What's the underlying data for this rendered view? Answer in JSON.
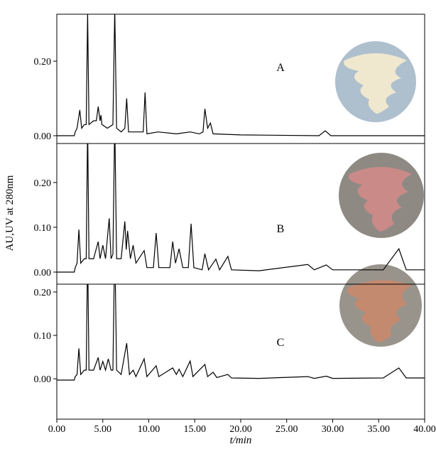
{
  "chart_data": [
    {
      "type": "line",
      "label": "A",
      "color": "#000000",
      "xlim": [
        0,
        40
      ],
      "ylim": [
        -0.021,
        0.326
      ],
      "yticks": [
        {
          "value": 0,
          "label": "0.00"
        },
        {
          "value": 0.2,
          "label": "0.20"
        }
      ],
      "x": [
        0,
        1.9,
        2.0,
        2.2,
        2.5,
        2.7,
        3.0,
        3.2,
        3.35,
        3.5,
        4.0,
        4.3,
        4.5,
        4.7,
        4.8,
        4.9,
        5.5,
        6.1,
        6.3,
        6.5,
        7.0,
        7.4,
        7.6,
        7.8,
        8.5,
        9.4,
        9.6,
        9.8,
        11,
        13,
        14.5,
        15.5,
        15.9,
        16.1,
        16.4,
        16.7,
        17.0,
        20,
        28.5,
        29.2,
        29.8,
        40
      ],
      "values": [
        0,
        0,
        0.01,
        0.02,
        0.069,
        0.02,
        0.03,
        0.03,
        0.33,
        0.03,
        0.04,
        0.04,
        0.078,
        0.04,
        0.055,
        0.03,
        0.02,
        0.03,
        0.34,
        0.02,
        0.01,
        0.02,
        0.1,
        0.01,
        0.01,
        0.01,
        0.116,
        0.005,
        0.01,
        0.005,
        0.01,
        0.005,
        0.01,
        0.072,
        0.02,
        0.034,
        0.005,
        0.002,
        0,
        0.013,
        0,
        0
      ]
    },
    {
      "type": "line",
      "label": "B",
      "color": "#000000",
      "ylabel": "AU,UV at 280nm",
      "xlim": [
        0,
        40
      ],
      "ylim": [
        -0.027,
        0.287
      ],
      "yticks": [
        {
          "value": 0,
          "label": "0.00"
        },
        {
          "value": 0.1,
          "label": "0.10"
        },
        {
          "value": 0.2,
          "label": "0.20"
        }
      ],
      "x": [
        0,
        1.9,
        2.0,
        2.2,
        2.4,
        2.6,
        3.0,
        3.2,
        3.35,
        3.5,
        4.0,
        4.5,
        4.7,
        5.0,
        5.3,
        5.7,
        5.9,
        6.1,
        6.3,
        6.5,
        7.0,
        7.4,
        7.55,
        7.7,
        8.0,
        8.3,
        8.6,
        9.5,
        9.8,
        10.5,
        10.8,
        11.1,
        12.3,
        12.6,
        12.9,
        13.3,
        13.7,
        14.3,
        14.6,
        14.9,
        15.8,
        16.1,
        16.5,
        17.3,
        17.7,
        18.6,
        19.0,
        22,
        27.3,
        28,
        29.3,
        30,
        35.5,
        37.2,
        38,
        40
      ],
      "values": [
        0,
        0,
        0.01,
        0.02,
        0.095,
        0.02,
        0.03,
        0.03,
        0.33,
        0.03,
        0.03,
        0.068,
        0.03,
        0.06,
        0.03,
        0.12,
        0.03,
        0.04,
        0.34,
        0.03,
        0.03,
        0.113,
        0.05,
        0.092,
        0.03,
        0.06,
        0.02,
        0.048,
        0.01,
        0.01,
        0.087,
        0.01,
        0.01,
        0.068,
        0.02,
        0.052,
        0.01,
        0.01,
        0.108,
        0.01,
        0.005,
        0.041,
        0.005,
        0.029,
        0.005,
        0.035,
        0.005,
        0.003,
        0.017,
        0.005,
        0.016,
        0.005,
        0.005,
        0.052,
        0.005,
        0.005
      ]
    },
    {
      "type": "line",
      "label": "C",
      "color": "#000000",
      "xlabel": "t/min",
      "xlim": [
        0,
        40
      ],
      "ylim": [
        -0.093,
        0.218
      ],
      "xticks": [
        {
          "value": 0,
          "label": "0.00"
        },
        {
          "value": 5,
          "label": "5.00"
        },
        {
          "value": 10,
          "label": "10.00"
        },
        {
          "value": 15,
          "label": "15.00"
        },
        {
          "value": 20,
          "label": "20.00"
        },
        {
          "value": 25,
          "label": "25.00"
        },
        {
          "value": 30,
          "label": "30.00"
        },
        {
          "value": 35,
          "label": "35.00"
        },
        {
          "value": 40,
          "label": "40.00"
        }
      ],
      "yticks": [
        {
          "value": 0,
          "label": "0.00"
        },
        {
          "value": 0.1,
          "label": "0.10"
        },
        {
          "value": 0.2,
          "label": "0.20"
        }
      ],
      "x": [
        0,
        1.9,
        2.0,
        2.2,
        2.4,
        2.6,
        3.0,
        3.2,
        3.35,
        3.5,
        4.0,
        4.5,
        4.7,
        5.0,
        5.3,
        5.6,
        5.9,
        6.1,
        6.3,
        6.5,
        7.0,
        7.6,
        7.9,
        8.3,
        8.6,
        9.5,
        9.8,
        10.8,
        11.1,
        12.6,
        13.0,
        13.3,
        13.7,
        14.5,
        14.8,
        16.1,
        16.4,
        17.0,
        17.4,
        18.6,
        19.0,
        22,
        27.3,
        28,
        29.3,
        30,
        35.5,
        37.2,
        38,
        40
      ],
      "values": [
        -0.003,
        -0.003,
        0.005,
        0.01,
        0.07,
        0.01,
        0.02,
        0.02,
        0.3,
        0.02,
        0.02,
        0.049,
        0.02,
        0.04,
        0.02,
        0.046,
        0.02,
        0.02,
        0.32,
        0.02,
        0.01,
        0.082,
        0.01,
        0.02,
        0.005,
        0.046,
        0.005,
        0.03,
        0.005,
        0.025,
        0.01,
        0.022,
        0.005,
        0.041,
        0.005,
        0.033,
        0.005,
        0.015,
        0.003,
        0.01,
        0.002,
        0.001,
        0.005,
        0.001,
        0.006,
        0.001,
        0.002,
        0.025,
        0.002,
        0.002
      ]
    }
  ]
}
